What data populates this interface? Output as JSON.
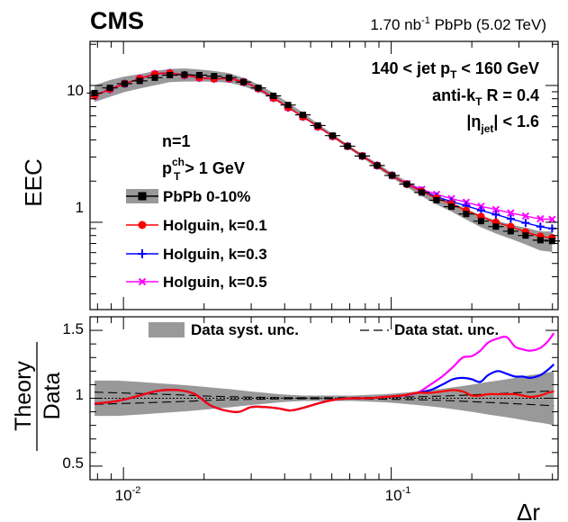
{
  "header": {
    "experiment": "CMS",
    "lumi_value": "1.70 nb",
    "lumi_exp": "-1",
    "lumi_rest": " PbPb (5.02 TeV)"
  },
  "selection": {
    "line1_a": "140 < jet p",
    "line1_sub": "T",
    "line1_b": " < 160 GeV",
    "line2_a": "anti-k",
    "line2_sub": "T",
    "line2_b": " R = 0.4",
    "line3_a": "|η",
    "line3_sub": "jet",
    "line3_b": "| < 1.6"
  },
  "info": {
    "n_label": "n=1",
    "pt_a": "p",
    "pt_sup": "ch",
    "pt_sub": "T",
    "pt_b": " > 1 GeV"
  },
  "legend": {
    "data": "PbPb 0-10%",
    "k01": "Holguin, k=0.1",
    "k03": "Holguin, k=0.3",
    "k05": "Holguin, k=0.5",
    "syst": "Data syst. unc.",
    "stat": "Data stat. unc."
  },
  "colors": {
    "data": "#000000",
    "k01": "#ff0000",
    "k03": "#0000ff",
    "k05": "#ff00ff",
    "band": "#999999"
  },
  "chart_data": {
    "type": "line",
    "xscale": "log",
    "xlabel": "Δr",
    "xlim": [
      0.0075,
      0.42
    ],
    "x_tick_labels": [
      "10",
      "-2",
      "10",
      "-1"
    ],
    "top": {
      "ylabel": "EEC",
      "yscale": "log",
      "ylim": [
        0.23,
        21
      ],
      "y_tick_labels": [
        "10",
        "1"
      ],
      "x": [
        0.0078,
        0.0089,
        0.0101,
        0.0115,
        0.0131,
        0.0149,
        0.0169,
        0.0192,
        0.0218,
        0.0248,
        0.0281,
        0.0319,
        0.0363,
        0.0412,
        0.0468,
        0.0532,
        0.0604,
        0.0687,
        0.078,
        0.0886,
        0.1007,
        0.1144,
        0.13,
        0.1477,
        0.1678,
        0.1906,
        0.2166,
        0.246,
        0.2795,
        0.3176,
        0.3608,
        0.399
      ],
      "series": [
        {
          "name": "PbPb 0-10%",
          "values": [
            8.8,
            9.6,
            10.3,
            10.8,
            11.4,
            11.9,
            12.0,
            11.9,
            11.7,
            11.4,
            10.6,
            9.6,
            8.4,
            7.2,
            6.1,
            5.1,
            4.3,
            3.6,
            3.05,
            2.6,
            2.2,
            1.9,
            1.65,
            1.45,
            1.3,
            1.15,
            1.02,
            0.93,
            0.86,
            0.8,
            0.74,
            0.73
          ]
        },
        {
          "name": "Holguin, k=0.1",
          "values": [
            8.4,
            9.4,
            10.3,
            11.2,
            12.1,
            12.3,
            11.9,
            11.4,
            11.2,
            11.2,
            10.6,
            9.5,
            8.1,
            6.9,
            5.9,
            5.0,
            4.25,
            3.6,
            3.05,
            2.6,
            2.2,
            1.9,
            1.68,
            1.5,
            1.36,
            1.22,
            1.1,
            1.0,
            0.93,
            0.85,
            0.79,
            0.77
          ]
        },
        {
          "name": "Holguin, k=0.3",
          "values": [
            8.4,
            9.4,
            10.3,
            11.2,
            12.1,
            12.3,
            11.9,
            11.4,
            11.2,
            11.2,
            10.6,
            9.5,
            8.1,
            6.9,
            5.9,
            5.0,
            4.25,
            3.6,
            3.05,
            2.6,
            2.2,
            1.9,
            1.7,
            1.54,
            1.42,
            1.32,
            1.22,
            1.14,
            1.06,
            0.99,
            0.93,
            0.9
          ]
        },
        {
          "name": "Holguin, k=0.5",
          "values": [
            8.4,
            9.4,
            10.3,
            11.2,
            12.1,
            12.3,
            11.9,
            11.4,
            11.2,
            11.2,
            10.6,
            9.5,
            8.1,
            6.9,
            5.9,
            5.0,
            4.25,
            3.6,
            3.05,
            2.6,
            2.2,
            1.92,
            1.74,
            1.6,
            1.49,
            1.4,
            1.31,
            1.24,
            1.17,
            1.11,
            1.06,
            1.05
          ]
        }
      ],
      "syst_band_rel": [
        0.14,
        0.14,
        0.13,
        0.12,
        0.12,
        0.11,
        0.11,
        0.1,
        0.09,
        0.08,
        0.07,
        0.06,
        0.05,
        0.04,
        0.04,
        0.03,
        0.03,
        0.03,
        0.03,
        0.04,
        0.04,
        0.05,
        0.06,
        0.07,
        0.08,
        0.09,
        0.1,
        0.11,
        0.12,
        0.14,
        0.16,
        0.17
      ]
    },
    "bottom": {
      "ylabel_num": "Theory",
      "ylabel_den": "Data",
      "ylim": [
        0.4,
        1.6
      ],
      "y_ticks": [
        0.5,
        1,
        1.5
      ],
      "y_tick_labels": [
        "0.5",
        "1",
        "1.5"
      ],
      "x": [
        0.0078,
        0.0095,
        0.0115,
        0.0135,
        0.016,
        0.0185,
        0.021,
        0.024,
        0.027,
        0.03,
        0.034,
        0.038,
        0.042,
        0.047,
        0.054,
        0.062,
        0.072,
        0.082,
        0.095,
        0.11,
        0.125,
        0.14,
        0.155,
        0.17,
        0.185,
        0.2,
        0.215,
        0.23,
        0.25,
        0.27,
        0.29,
        0.31,
        0.33,
        0.36,
        0.385,
        0.405
      ],
      "series": [
        {
          "name": "Holguin, k=0.1",
          "values": [
            0.96,
            0.98,
            1.02,
            1.055,
            1.06,
            1.03,
            0.95,
            0.91,
            0.9,
            0.935,
            0.935,
            0.925,
            0.91,
            0.93,
            0.965,
            0.99,
            1.0,
            1.0,
            1.01,
            1.02,
            1.04,
            1.04,
            1.05,
            1.06,
            1.05,
            1.02,
            1.02,
            1.03,
            1.03,
            1.03,
            1.03,
            1.02,
            1.01,
            1.02,
            1.04,
            1.05
          ]
        },
        {
          "name": "Holguin, k=0.3",
          "values": [
            0.96,
            0.98,
            1.02,
            1.055,
            1.06,
            1.03,
            0.95,
            0.91,
            0.9,
            0.935,
            0.935,
            0.925,
            0.91,
            0.93,
            0.965,
            0.99,
            1.0,
            1.0,
            1.01,
            1.02,
            1.04,
            1.06,
            1.1,
            1.14,
            1.15,
            1.14,
            1.12,
            1.17,
            1.2,
            1.18,
            1.16,
            1.16,
            1.15,
            1.17,
            1.21,
            1.25
          ]
        },
        {
          "name": "Holguin, k=0.5",
          "values": [
            0.96,
            0.98,
            1.02,
            1.055,
            1.06,
            1.03,
            0.95,
            0.91,
            0.9,
            0.935,
            0.935,
            0.925,
            0.91,
            0.93,
            0.965,
            0.99,
            1.0,
            1.0,
            1.01,
            1.02,
            1.04,
            1.1,
            1.16,
            1.23,
            1.3,
            1.31,
            1.35,
            1.41,
            1.44,
            1.45,
            1.38,
            1.36,
            1.35,
            1.37,
            1.42,
            1.48
          ]
        }
      ],
      "syst_band_half": [
        0.13,
        0.13,
        0.12,
        0.11,
        0.1,
        0.09,
        0.08,
        0.07,
        0.06,
        0.05,
        0.04,
        0.03,
        0.025,
        0.02,
        0.02,
        0.02,
        0.02,
        0.025,
        0.03,
        0.04,
        0.05,
        0.06,
        0.07,
        0.08,
        0.09,
        0.1,
        0.11,
        0.12,
        0.13,
        0.14,
        0.15,
        0.16,
        0.17,
        0.18,
        0.19,
        0.2
      ],
      "stat_half": [
        0.045,
        0.04,
        0.035,
        0.03,
        0.025,
        0.02,
        0.015,
        0.012,
        0.01,
        0.008,
        0.006,
        0.005,
        0.004,
        0.004,
        0.004,
        0.004,
        0.005,
        0.006,
        0.007,
        0.009,
        0.011,
        0.013,
        0.016,
        0.019,
        0.022,
        0.025,
        0.028,
        0.031,
        0.034,
        0.037,
        0.04,
        0.043,
        0.046,
        0.05,
        0.053,
        0.055
      ]
    }
  }
}
